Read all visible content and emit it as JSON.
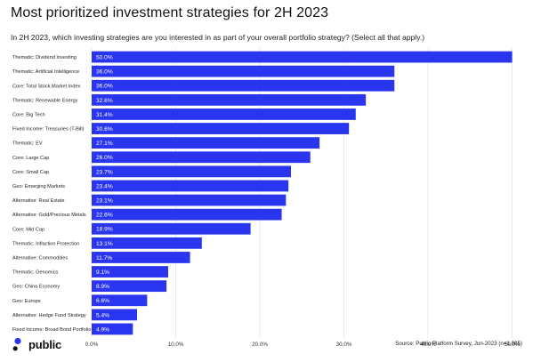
{
  "title": "Most prioritized investment strategies for 2H 2023",
  "subtitle": "In 2H 2023, which investing strategies are you interested in as part of your overall portfolio strategy? (Select all that apply.)",
  "source": "Source: Public Platform Survey, Jun-2023 (n=1,005)",
  "logo_text": "public",
  "colors": {
    "bar": "#2a35f0",
    "gridline": "#e6e6e6",
    "bar_label": "#ffffff",
    "text": "#111111"
  },
  "chart_data": {
    "type": "bar",
    "orientation": "horizontal",
    "title": "Most prioritized investment strategies for 2H 2023",
    "subtitle": "In 2H 2023, which investing strategies are you interested in as part of your overall portfolio strategy? (Select all that apply.)",
    "categories": [
      "Thematic: Dividend Investing",
      "Thematic: Artificial Intelligence",
      "Core: Total Stock Market Index",
      "Thematic: Renewable Energy",
      "Core: Big Tech",
      "Fixed Income: Treasuries (T-Bill)",
      "Thematic: EV",
      "Core: Large Cap",
      "Core: Small Cap",
      "Geo: Emerging Markets",
      "Alternative: Real Estate",
      "Alternative: Gold/Precious Metals",
      "Core: Mid Cap",
      "Thematic: Inflaction Protection",
      "Alternative: Commodities",
      "Thematic: Genomics",
      "Geo: China Economy",
      "Geo: Europe",
      "Alternative: Hedge Fund Strategy",
      "Fixed Income: Broad Bond Portfolio"
    ],
    "values": [
      50.0,
      36.0,
      36.0,
      32.6,
      31.4,
      30.6,
      27.1,
      26.0,
      23.7,
      23.4,
      23.1,
      22.6,
      18.9,
      13.1,
      11.7,
      9.1,
      8.9,
      6.6,
      5.4,
      4.9
    ],
    "value_labels": [
      "50.0%",
      "36.0%",
      "36.0%",
      "32.6%",
      "31.4%",
      "30.6%",
      "27.1%",
      "26.0%",
      "23.7%",
      "23.4%",
      "23.1%",
      "22.6%",
      "18.9%",
      "13.1%",
      "11.7%",
      "9.1%",
      "8.9%",
      "6.6%",
      "5.4%",
      "4.9%"
    ],
    "xlim": [
      0,
      51
    ],
    "x_ticks": [
      0,
      10,
      20,
      30,
      40,
      50
    ],
    "x_tick_labels": [
      "0.0%",
      "10.0%",
      "20.0%",
      "30.0%",
      "40.0%",
      "50.0%"
    ],
    "grid": "vertical",
    "legend": "none"
  }
}
